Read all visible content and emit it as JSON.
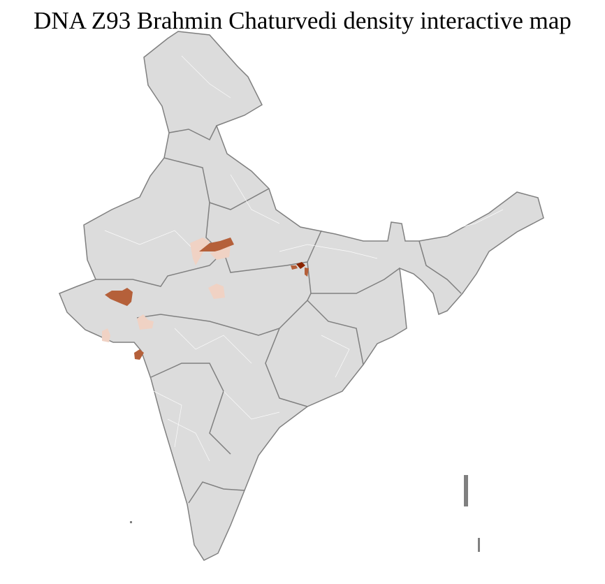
{
  "title": "DNA Z93 Brahmin Chaturvedi density interactive map",
  "colors": {
    "land": "#dcdcdc",
    "state_border": "#808080",
    "district_border": "#ffffff",
    "density_low": "#f0d2c4",
    "density_mid": "#b5603a",
    "density_high": "#8b2500"
  },
  "regions": [
    {
      "area": "Gujarat (north)",
      "level": "mid"
    },
    {
      "area": "Rajasthan / Uttar Pradesh border",
      "level": "mid"
    },
    {
      "area": "Rajasthan (east)",
      "level": "low"
    },
    {
      "area": "Madhya Pradesh (north)",
      "level": "low"
    },
    {
      "area": "Bihar (west)",
      "level": "high"
    },
    {
      "area": "Bihar (west) adjacent",
      "level": "mid"
    },
    {
      "area": "Gujarat (central)",
      "level": "low"
    },
    {
      "area": "Gujarat (Saurashtra)",
      "level": "low"
    },
    {
      "area": "Gujarat (south)",
      "level": "mid"
    }
  ]
}
